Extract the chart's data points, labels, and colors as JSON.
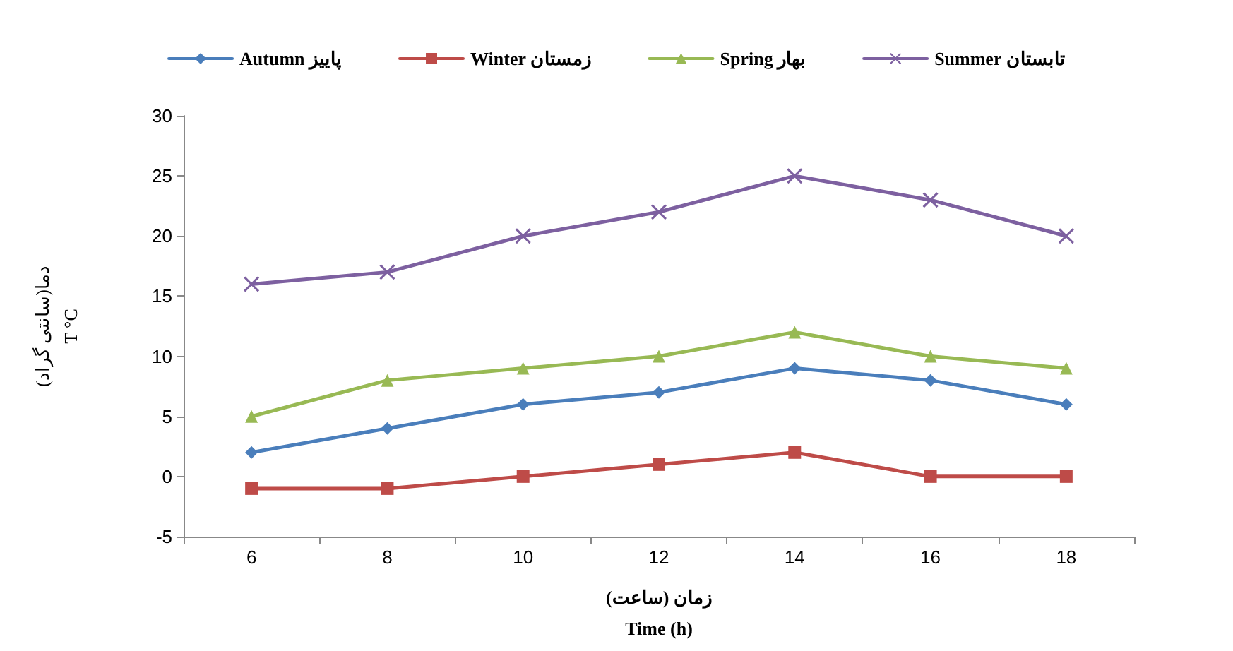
{
  "chart_data": {
    "type": "line",
    "xlabel": "زمان (ساعت)\nTime (h)",
    "ylabel": "دما(سانتی گراد)\nT °C",
    "categories": [
      "6",
      "8",
      "10",
      "12",
      "14",
      "16",
      "18"
    ],
    "ylim": [
      -5,
      30
    ],
    "yticks": [
      -5,
      0,
      5,
      10,
      15,
      20,
      25,
      30
    ],
    "grid": false,
    "legend": "top",
    "series": [
      {
        "name": "Autumn پاییز",
        "color": "#4a7ebb",
        "marker": "diamond",
        "values": [
          2,
          4,
          6,
          7,
          9,
          8,
          6
        ]
      },
      {
        "name": "Winter زمستان",
        "color": "#be4b48",
        "marker": "square",
        "values": [
          -1,
          -1,
          0,
          1,
          2,
          0,
          0
        ]
      },
      {
        "name": "Spring بهار",
        "color": "#98b954",
        "marker": "triangle",
        "values": [
          5,
          8,
          9,
          10,
          12,
          10,
          9
        ]
      },
      {
        "name": "Summer تابستان",
        "color": "#7d60a0",
        "marker": "cross",
        "values": [
          16,
          17,
          20,
          22,
          25,
          23,
          20
        ]
      }
    ]
  }
}
